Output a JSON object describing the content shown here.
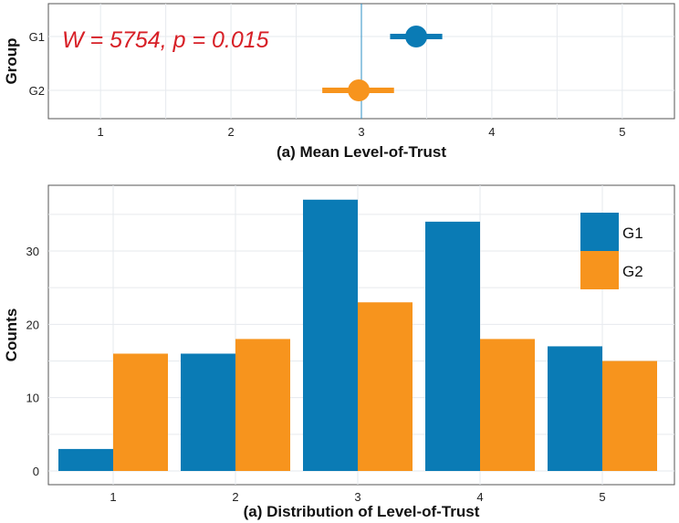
{
  "chart_data": [
    {
      "type": "scatter",
      "annotation": "W = 5754, p = 0.015",
      "xlabel": "(a) Mean Level-of-Trust",
      "ylabel": "Group",
      "xlim": [
        0.6,
        5.4
      ],
      "x_ticks": [
        "1",
        "2",
        "3",
        "4",
        "5"
      ],
      "categories": [
        "G1",
        "G2"
      ],
      "reference_line_x": 3,
      "grid": true,
      "points": [
        {
          "group": "G1",
          "mean": 3.42,
          "ci": [
            3.22,
            3.62
          ],
          "color": "#0a7bb5"
        },
        {
          "group": "G2",
          "mean": 2.98,
          "ci": [
            2.7,
            3.25
          ],
          "color": "#f7941d"
        }
      ],
      "annotation_color": "#d71f26"
    },
    {
      "type": "bar",
      "xlabel": "(a) Distribution of Level-of-Trust",
      "ylabel": "Counts",
      "categories": [
        "1",
        "2",
        "3",
        "4",
        "5"
      ],
      "ylim": [
        0,
        39
      ],
      "y_ticks": [
        "0",
        "10",
        "20",
        "30"
      ],
      "grid": true,
      "legend_position": "top-right",
      "series": [
        {
          "name": "G1",
          "values": [
            3,
            16,
            37,
            34,
            17
          ],
          "color": "#0a7bb5"
        },
        {
          "name": "G2",
          "values": [
            16,
            18,
            23,
            18,
            15
          ],
          "color": "#f7941d"
        }
      ]
    }
  ]
}
